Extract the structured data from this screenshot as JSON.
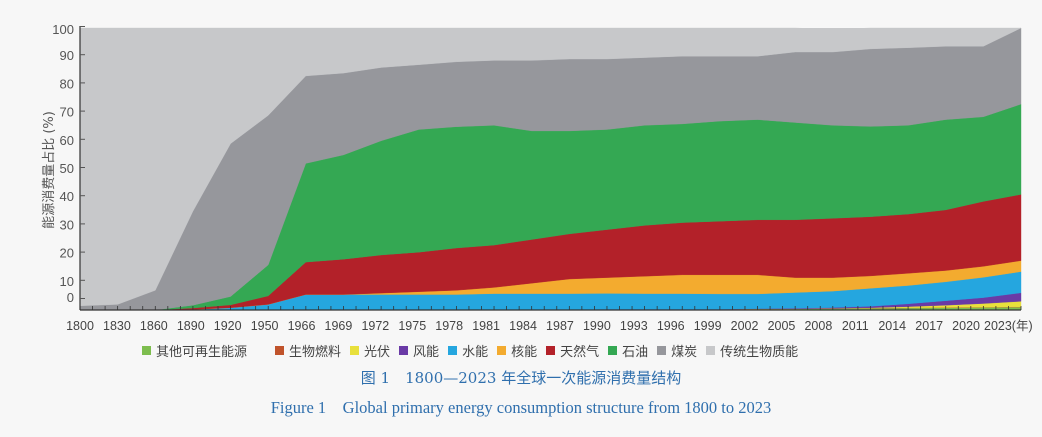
{
  "chart_data": {
    "type": "area",
    "stacked": true,
    "title": "",
    "xlabel": "(年)",
    "ylabel": "能源消费量占比 (%)",
    "ylim": [
      0,
      100
    ],
    "yticks": [
      0,
      10,
      20,
      30,
      40,
      50,
      60,
      70,
      80,
      90,
      100
    ],
    "grid": false,
    "legend_position": "bottom",
    "categories": [
      "1800",
      "1830",
      "1860",
      "1890",
      "1920",
      "1950",
      "1966",
      "1969",
      "1972",
      "1975",
      "1978",
      "1981",
      "1984",
      "1987",
      "1990",
      "1993",
      "1996",
      "1999",
      "2002",
      "2005",
      "2008",
      "2011",
      "2014",
      "2017",
      "2020",
      "2023"
    ],
    "series": [
      {
        "name": "其他可再生能源",
        "color": "#7dbd4e",
        "values": [
          0,
          0,
          0,
          0,
          0,
          0,
          0,
          0,
          0,
          0,
          0,
          0,
          0,
          0,
          0.3,
          0.3,
          0.3,
          0.3,
          0.4,
          0.4,
          0.5,
          0.6,
          0.7,
          0.8,
          0.9,
          1.0
        ]
      },
      {
        "name": "生物燃料",
        "color": "#c0532b",
        "values": [
          0,
          0,
          0,
          0,
          0,
          0,
          0,
          0,
          0,
          0,
          0,
          0,
          0,
          0,
          0,
          0,
          0,
          0,
          0,
          0,
          0.1,
          0.1,
          0.1,
          0.1,
          0.1,
          0.1
        ]
      },
      {
        "name": "光伏",
        "color": "#e8e03c",
        "values": [
          0,
          0,
          0,
          0,
          0,
          0,
          0,
          0,
          0,
          0,
          0,
          0,
          0,
          0,
          0,
          0,
          0,
          0,
          0,
          0,
          0,
          0.1,
          0.4,
          0.8,
          1.3,
          2.0
        ]
      },
      {
        "name": "风能",
        "color": "#6a3aa6",
        "values": [
          0,
          0,
          0,
          0,
          0,
          0,
          0,
          0,
          0,
          0,
          0,
          0,
          0,
          0,
          0,
          0,
          0,
          0,
          0.1,
          0.2,
          0.3,
          0.5,
          1.0,
          1.6,
          2.1,
          3.0
        ]
      },
      {
        "name": "水能",
        "color": "#25a6df",
        "values": [
          0,
          0,
          0,
          0.2,
          0.8,
          2.0,
          5.5,
          5.5,
          5.5,
          5.5,
          5.5,
          5.8,
          5.8,
          5.8,
          5.6,
          5.5,
          5.5,
          5.4,
          5.2,
          5.6,
          5.8,
          6.4,
          6.5,
          6.7,
          7.2,
          7.5
        ]
      },
      {
        "name": "核能",
        "color": "#f3ab2f",
        "values": [
          0,
          0,
          0,
          0,
          0,
          0,
          0,
          0,
          0.5,
          1.0,
          1.5,
          2.2,
          3.7,
          5.2,
          5.6,
          6.2,
          6.7,
          6.8,
          6.8,
          5.3,
          4.8,
          4.4,
          4.3,
          4.0,
          3.9,
          3.9
        ]
      },
      {
        "name": "天然气",
        "color": "#b32129",
        "values": [
          0,
          0,
          0,
          0.5,
          1.0,
          3.0,
          11.5,
          12.5,
          13.5,
          14.0,
          15.0,
          15.0,
          15.5,
          16.0,
          17.0,
          18.0,
          18.5,
          19.0,
          19.5,
          20.5,
          21.0,
          21.0,
          21.0,
          21.5,
          23.0,
          23.5
        ]
      },
      {
        "name": "石油",
        "color": "#34a853",
        "values": [
          0,
          0,
          0,
          1.0,
          3.0,
          11.0,
          35.0,
          37.0,
          40.5,
          43.5,
          43.0,
          42.5,
          38.5,
          36.5,
          35.5,
          35.5,
          35.0,
          35.5,
          35.5,
          34.5,
          33.0,
          32.0,
          31.5,
          32.0,
          30.0,
          32.0
        ]
      },
      {
        "name": "煤炭",
        "color": "#96979c",
        "values": [
          1.5,
          2.0,
          7.0,
          33.3,
          54.2,
          53.0,
          31.0,
          29.0,
          26.0,
          23.0,
          23.0,
          23.0,
          25.0,
          25.5,
          25.0,
          24.0,
          24.0,
          23.0,
          22.5,
          25.0,
          26.0,
          27.5,
          27.5,
          26.0,
          25.0,
          27.0
        ]
      },
      {
        "name": "传统生物质能",
        "color": "#c7c8ca",
        "values": [
          98.5,
          98.0,
          93.0,
          65.0,
          41.0,
          31.0,
          17.0,
          16.0,
          14.0,
          13.0,
          12.0,
          11.5,
          11.5,
          11.0,
          11.0,
          10.5,
          10.0,
          10.0,
          10.0,
          8.5,
          8.0,
          7.5,
          7.0,
          6.5,
          6.5,
          0
        ]
      }
    ]
  },
  "axis": {
    "y_tick_labels": [
      "0",
      "10",
      "20",
      "30",
      "40",
      "50",
      "60",
      "70",
      "80",
      "90",
      "100"
    ],
    "y_title": "能源消费量占比 (%)",
    "x_tick_labels": [
      "1800",
      "1830",
      "1860",
      "1890",
      "1920",
      "1950",
      "1966",
      "1969",
      "1972",
      "1975",
      "1978",
      "1981",
      "1984",
      "1987",
      "1990",
      "1993",
      "1996",
      "1999",
      "2002",
      "2005",
      "2008",
      "2011",
      "2014",
      "2017",
      "2020",
      "2023(年)"
    ]
  },
  "legend": [
    {
      "label": "其他可再生能源",
      "color": "#7dbd4e"
    },
    {
      "label": "生物燃料",
      "color": "#c0532b"
    },
    {
      "label": "光伏",
      "color": "#e8e03c"
    },
    {
      "label": "风能",
      "color": "#6a3aa6"
    },
    {
      "label": "水能",
      "color": "#25a6df"
    },
    {
      "label": "核能",
      "color": "#f3ab2f"
    },
    {
      "label": "天然气",
      "color": "#b32129"
    },
    {
      "label": "石油",
      "color": "#34a853"
    },
    {
      "label": "煤炭",
      "color": "#96979c"
    },
    {
      "label": "传统生物质能",
      "color": "#c7c8ca"
    }
  ],
  "caption": {
    "cn": "图 1　1800—2023 年全球一次能源消费量结构",
    "en": "Figure 1　Global primary energy consumption structure from 1800 to 2023"
  }
}
